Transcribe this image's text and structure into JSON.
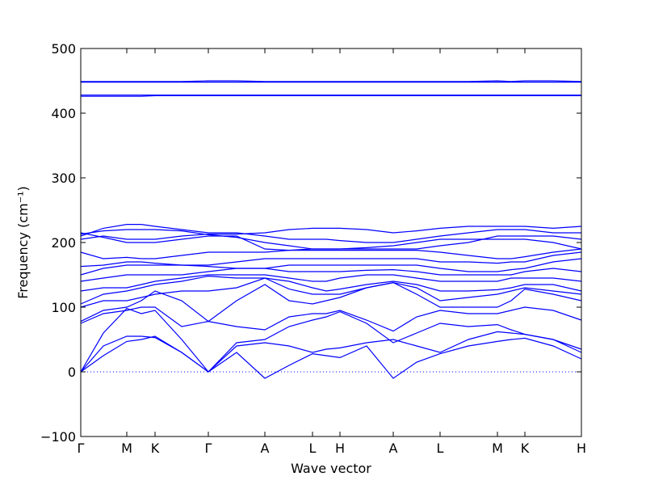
{
  "chart_data": {
    "type": "line",
    "xlabel": "Wave vector",
    "ylabel": "Frequency (cm⁻¹)",
    "xlim": [
      0,
      6.2
    ],
    "ylim": [
      -100,
      500
    ],
    "yticks": [
      {
        "value": -100,
        "label": "−100"
      },
      0,
      100,
      200,
      300,
      400,
      500
    ],
    "xticks": [
      {
        "value": 0,
        "label": "Γ"
      },
      {
        "value": 0.57,
        "label": "M"
      },
      {
        "value": 0.92,
        "label": "K"
      },
      {
        "value": 1.58,
        "label": "Γ"
      },
      {
        "value": 2.28,
        "label": "A"
      },
      {
        "value": 2.87,
        "label": "L"
      },
      {
        "value": 3.21,
        "label": "H"
      },
      {
        "value": 3.87,
        "label": "A"
      },
      {
        "value": 4.45,
        "label": "L"
      },
      {
        "value": 5.16,
        "label": "M"
      },
      {
        "value": 5.5,
        "label": "K"
      },
      {
        "value": 6.2,
        "label": "H"
      }
    ],
    "zero_line": true,
    "x": [
      0,
      0.28,
      0.57,
      0.75,
      0.92,
      1.25,
      1.58,
      1.93,
      2.28,
      2.58,
      2.87,
      3.04,
      3.21,
      3.54,
      3.87,
      4.16,
      4.45,
      4.8,
      5.16,
      5.33,
      5.5,
      5.85,
      6.2
    ],
    "series": [
      {
        "color": "#0000ff",
        "values": [
          0,
          25,
          47,
          50,
          55,
          30,
          0,
          30,
          -10,
          10,
          28,
          25,
          22,
          40,
          -10,
          15,
          28,
          40,
          47,
          50,
          52,
          40,
          20
        ]
      },
      {
        "color": "#0000ff",
        "values": [
          0,
          40,
          55,
          55,
          53,
          30,
          0,
          40,
          45,
          40,
          30,
          35,
          37,
          45,
          50,
          40,
          30,
          50,
          62,
          60,
          58,
          50,
          30
        ]
      },
      {
        "color": "#0000ff",
        "values": [
          0,
          60,
          98,
          90,
          95,
          50,
          0,
          45,
          50,
          70,
          80,
          85,
          93,
          75,
          45,
          60,
          75,
          70,
          73,
          65,
          58,
          50,
          35
        ]
      },
      {
        "color": "#0000ff",
        "values": [
          75,
          90,
          95,
          100,
          100,
          70,
          78,
          70,
          65,
          85,
          90,
          90,
          95,
          80,
          63,
          85,
          95,
          90,
          90,
          95,
          100,
          95,
          80
        ]
      },
      {
        "color": "#0000ff",
        "values": [
          78,
          95,
          100,
          110,
          125,
          110,
          78,
          110,
          135,
          110,
          105,
          110,
          115,
          130,
          138,
          120,
          100,
          100,
          100,
          110,
          128,
          120,
          110
        ]
      },
      {
        "color": "#0000ff",
        "values": [
          100,
          110,
          110,
          115,
          120,
          125,
          125,
          130,
          145,
          128,
          120,
          120,
          120,
          130,
          138,
          130,
          110,
          115,
          120,
          125,
          130,
          125,
          120
        ]
      },
      {
        "color": "#0000ff",
        "values": [
          105,
          120,
          125,
          130,
          135,
          140,
          148,
          145,
          145,
          140,
          130,
          125,
          128,
          135,
          140,
          135,
          125,
          125,
          127,
          130,
          135,
          135,
          125
        ]
      },
      {
        "color": "#0000ff",
        "values": [
          125,
          130,
          130,
          135,
          140,
          145,
          150,
          150,
          150,
          145,
          140,
          140,
          145,
          150,
          150,
          145,
          140,
          140,
          140,
          145,
          145,
          145,
          140
        ]
      },
      {
        "color": "#0000ff",
        "values": [
          140,
          145,
          150,
          150,
          150,
          150,
          155,
          160,
          160,
          155,
          155,
          155,
          155,
          157,
          158,
          155,
          150,
          150,
          150,
          150,
          155,
          160,
          155
        ]
      },
      {
        "color": "#0000ff",
        "values": [
          150,
          160,
          165,
          165,
          165,
          165,
          163,
          160,
          160,
          165,
          165,
          165,
          165,
          165,
          165,
          165,
          160,
          155,
          155,
          158,
          160,
          170,
          175
        ]
      },
      {
        "color": "#0000ff",
        "values": [
          163,
          165,
          170,
          170,
          168,
          165,
          165,
          170,
          175,
          175,
          175,
          175,
          175,
          175,
          175,
          175,
          170,
          170,
          168,
          170,
          170,
          180,
          185
        ]
      },
      {
        "color": "#0000ff",
        "values": [
          185,
          175,
          177,
          175,
          175,
          180,
          185,
          185,
          185,
          188,
          188,
          188,
          188,
          188,
          188,
          188,
          185,
          180,
          175,
          175,
          178,
          185,
          190
        ]
      },
      {
        "color": "#0000ff",
        "values": [
          205,
          210,
          205,
          205,
          205,
          210,
          213,
          213,
          215,
          220,
          222,
          222,
          222,
          220,
          215,
          218,
          222,
          225,
          225,
          225,
          225,
          222,
          225
        ]
      },
      {
        "color": "#0000ff",
        "values": [
          210,
          222,
          228,
          228,
          225,
          220,
          215,
          215,
          210,
          205,
          205,
          205,
          203,
          200,
          200,
          205,
          210,
          215,
          220,
          220,
          220,
          215,
          215
        ]
      },
      {
        "color": "#0000ff",
        "values": [
          213,
          218,
          220,
          220,
          220,
          218,
          212,
          208,
          200,
          195,
          190,
          190,
          190,
          192,
          195,
          200,
          205,
          205,
          205,
          205,
          205,
          200,
          190
        ]
      },
      {
        "color": "#0000ff",
        "values": [
          215,
          208,
          200,
          200,
          200,
          205,
          210,
          210,
          190,
          188,
          190,
          190,
          190,
          190,
          190,
          190,
          195,
          200,
          210,
          210,
          210,
          210,
          205
        ]
      },
      {
        "color": "#0000ff",
        "values": [
          426,
          426,
          426,
          426,
          427,
          427,
          427,
          427,
          427,
          427,
          427,
          427,
          427,
          427,
          427,
          427,
          427,
          427,
          427,
          427,
          427,
          427,
          427
        ]
      },
      {
        "color": "#0000ff",
        "values": [
          428,
          428,
          428,
          428,
          428,
          428,
          428,
          428,
          428,
          428,
          428,
          428,
          428,
          428,
          428,
          428,
          428,
          428,
          428,
          428,
          428,
          428,
          428
        ]
      },
      {
        "color": "#0000ff",
        "values": [
          449,
          449,
          449,
          449,
          449,
          449,
          450,
          450,
          449,
          449,
          449,
          449,
          449,
          449,
          449,
          449,
          449,
          449,
          450,
          449,
          450,
          450,
          449
        ]
      },
      {
        "color": "#0000ff",
        "values": [
          448,
          448,
          448,
          448,
          448,
          448,
          448,
          448,
          448,
          448,
          448,
          448,
          448,
          448,
          448,
          448,
          448,
          448,
          448,
          448,
          448,
          448,
          448
        ]
      }
    ]
  }
}
